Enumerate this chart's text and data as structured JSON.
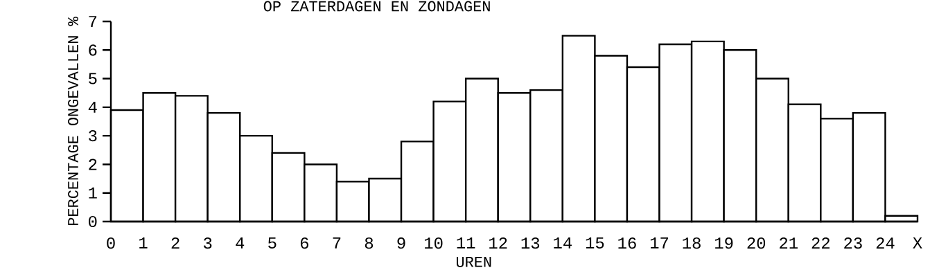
{
  "chart_data": {
    "type": "histogram",
    "title": "OP ZATERDAGEN EN ZONDAGEN",
    "xlabel": "UREN",
    "ylabel": "PERCENTAGE ONGEVALLEN %",
    "bins": [
      0,
      1,
      2,
      3,
      4,
      5,
      6,
      7,
      8,
      9,
      10,
      11,
      12,
      13,
      14,
      15,
      16,
      17,
      18,
      19,
      20,
      21,
      22,
      23,
      24,
      25
    ],
    "values": [
      3.9,
      4.5,
      4.4,
      3.8,
      3.0,
      2.4,
      2.0,
      1.4,
      1.5,
      2.8,
      4.2,
      5.0,
      4.5,
      4.6,
      6.5,
      5.8,
      5.4,
      6.2,
      6.3,
      6.0,
      5.0,
      4.1,
      3.6,
      3.8,
      0.2
    ],
    "color": "#ffffff",
    "xlim": [
      0,
      25
    ],
    "ylim": [
      0,
      7
    ],
    "xticks": [
      0,
      1,
      2,
      3,
      4,
      5,
      6,
      7,
      8,
      9,
      10,
      11,
      12,
      13,
      14,
      15,
      16,
      17,
      18,
      19,
      20,
      21,
      22,
      23,
      24,
      {
        "value": 25,
        "label": "X"
      }
    ],
    "yticks": [
      0,
      1,
      2,
      3,
      4,
      5,
      6,
      7
    ]
  }
}
